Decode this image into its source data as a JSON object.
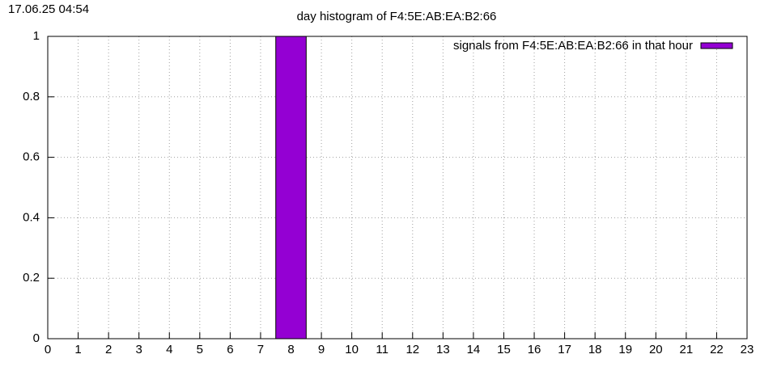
{
  "chart_data": {
    "type": "bar",
    "title": "day histogram of F4:5E:AB:EA:B2:66",
    "timestamp": "17.06.25 04:54",
    "x": [
      0,
      1,
      2,
      3,
      4,
      5,
      6,
      7,
      8,
      9,
      10,
      11,
      12,
      13,
      14,
      15,
      16,
      17,
      18,
      19,
      20,
      21,
      22,
      23
    ],
    "series": [
      {
        "name": "signals from F4:5E:AB:EA:B2:66 in that hour",
        "color": "#9400d3",
        "values": [
          0,
          0,
          0,
          0,
          0,
          0,
          0,
          0,
          1,
          0,
          0,
          0,
          0,
          0,
          0,
          0,
          0,
          0,
          0,
          0,
          0,
          0,
          0,
          0
        ]
      }
    ],
    "xlim": [
      0,
      23
    ],
    "xticks": [
      0,
      1,
      2,
      3,
      4,
      5,
      6,
      7,
      8,
      9,
      10,
      11,
      12,
      13,
      14,
      15,
      16,
      17,
      18,
      19,
      20,
      21,
      22,
      23
    ],
    "ylim": [
      0,
      1
    ],
    "yticks": [
      0,
      0.2,
      0.4,
      0.6,
      0.8,
      1
    ],
    "grid": true,
    "legend": "top-right"
  }
}
